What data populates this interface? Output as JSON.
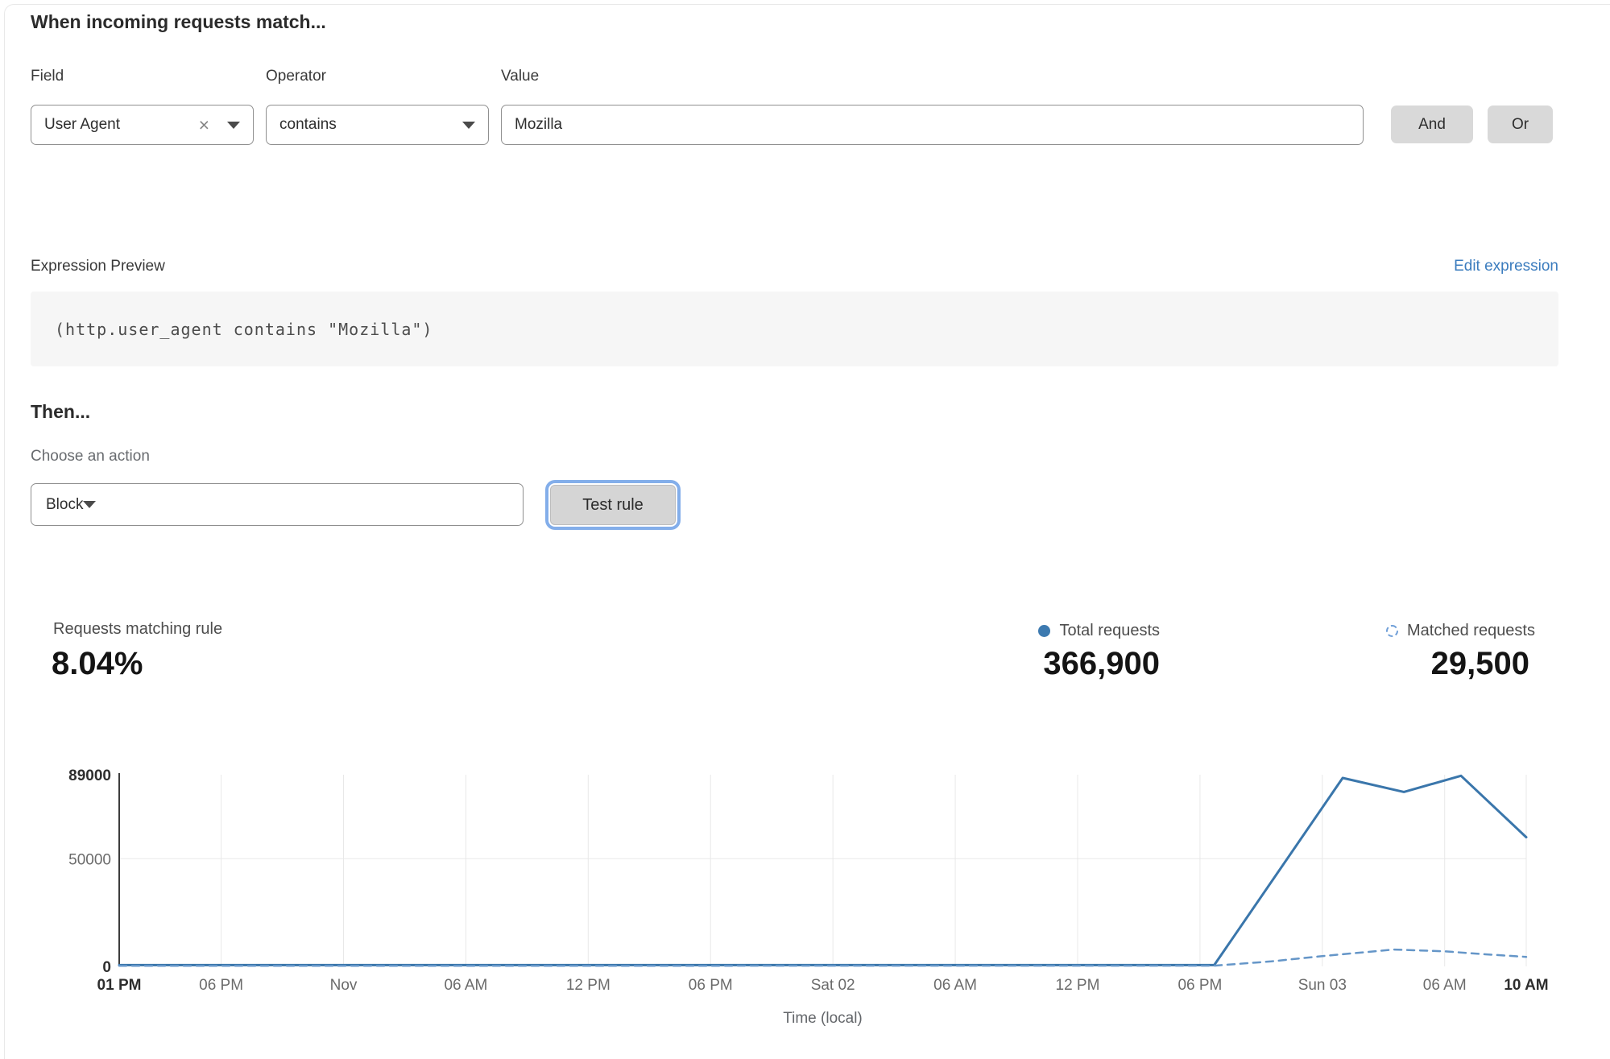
{
  "match": {
    "heading": "When incoming requests match...",
    "field": {
      "label": "Field",
      "value": "User Agent"
    },
    "operator": {
      "label": "Operator",
      "value": "contains"
    },
    "value": {
      "label": "Value",
      "value": "Mozilla"
    },
    "and_label": "And",
    "or_label": "Or"
  },
  "expression": {
    "label": "Expression Preview",
    "edit_link": "Edit expression",
    "code": "(http.user_agent contains \"Mozilla\")"
  },
  "action": {
    "heading": "Then...",
    "choose_label": "Choose an action",
    "value": "Block",
    "test_label": "Test rule"
  },
  "stats": {
    "matching": {
      "label": "Requests matching rule",
      "value": "8.04%"
    },
    "total": {
      "label": "Total requests",
      "value": "366,900"
    },
    "matched": {
      "label": "Matched requests",
      "value": "29,500"
    }
  },
  "colors": {
    "link_blue": "#3b7cbe",
    "line_solid_blue": "#3a76ab",
    "line_dashed_blue": "#6596c8",
    "legend_dot": "#3d7ab0",
    "button_gray": "#d9d9d9",
    "focus_ring": "#83aeea",
    "grid": "#e8e8e8",
    "axis": "#3d3d3d"
  },
  "chart_data": {
    "type": "line",
    "title": "",
    "xlabel": "Time (local)",
    "ylabel": "",
    "grid": true,
    "legend_position": "above-right",
    "ylim": [
      0,
      89000
    ],
    "x_total_hours": 69,
    "y_ticks": [
      {
        "label": "89000",
        "value": 89000,
        "bold": true
      },
      {
        "label": "50000",
        "value": 50000,
        "bold": false
      },
      {
        "label": "0",
        "value": 0,
        "bold": true
      }
    ],
    "x_ticks": [
      {
        "label": "01 PM",
        "hour": 0,
        "bold": true
      },
      {
        "label": "06 PM",
        "hour": 5,
        "bold": false
      },
      {
        "label": "Nov",
        "hour": 11,
        "bold": false
      },
      {
        "label": "06 AM",
        "hour": 17,
        "bold": false
      },
      {
        "label": "12 PM",
        "hour": 23,
        "bold": false
      },
      {
        "label": "06 PM",
        "hour": 29,
        "bold": false
      },
      {
        "label": "Sat 02",
        "hour": 35,
        "bold": false
      },
      {
        "label": "06 AM",
        "hour": 41,
        "bold": false
      },
      {
        "label": "12 PM",
        "hour": 47,
        "bold": false
      },
      {
        "label": "06 PM",
        "hour": 53,
        "bold": false
      },
      {
        "label": "Sun 03",
        "hour": 59,
        "bold": false
      },
      {
        "label": "06 AM",
        "hour": 65,
        "bold": false
      },
      {
        "label": "10 AM",
        "hour": 69,
        "bold": true
      }
    ],
    "series": [
      {
        "name": "Total requests",
        "style": "solid",
        "color": "#3a76ab",
        "points": [
          [
            0,
            600
          ],
          [
            53.7,
            600
          ],
          [
            60,
            87500
          ],
          [
            63,
            81000
          ],
          [
            65.8,
            88500
          ],
          [
            69,
            60000
          ]
        ]
      },
      {
        "name": "Matched requests",
        "style": "dashed",
        "color": "#6596c8",
        "points": [
          [
            0,
            250
          ],
          [
            53.7,
            350
          ],
          [
            56.5,
            2300
          ],
          [
            59,
            4800
          ],
          [
            62.5,
            7800
          ],
          [
            65,
            7000
          ],
          [
            67,
            5600
          ],
          [
            69,
            4400
          ]
        ]
      }
    ]
  }
}
